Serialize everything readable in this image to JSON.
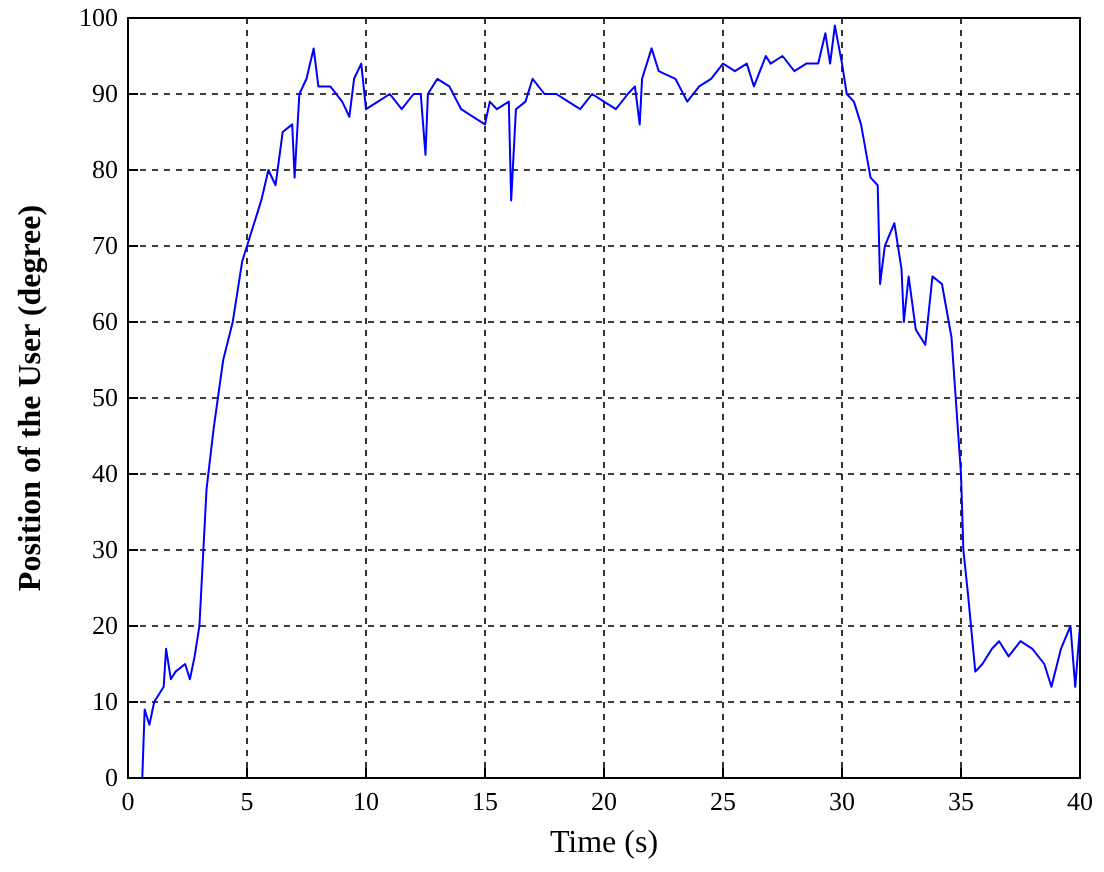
{
  "chart_data": {
    "type": "line",
    "xlabel": "Time (s)",
    "ylabel": "Position of the User (degree)",
    "xlim": [
      0,
      40
    ],
    "ylim": [
      0,
      100
    ],
    "xticks": [
      0,
      5,
      10,
      15,
      20,
      25,
      30,
      35,
      40
    ],
    "yticks": [
      0,
      10,
      20,
      30,
      40,
      50,
      60,
      70,
      80,
      90,
      100
    ],
    "grid": true,
    "series": [
      {
        "color": "#0000ff",
        "x": [
          0.6,
          0.7,
          0.9,
          1.1,
          1.5,
          1.6,
          1.8,
          2.0,
          2.4,
          2.6,
          2.8,
          3.0,
          3.3,
          3.6,
          4.0,
          4.4,
          4.6,
          4.8,
          5.0,
          5.3,
          5.6,
          5.9,
          6.2,
          6.5,
          6.9,
          7.0,
          7.2,
          7.5,
          7.8,
          8.0,
          8.5,
          9.0,
          9.3,
          9.5,
          9.8,
          10.0,
          10.5,
          11,
          11.5,
          12.0,
          12.3,
          12.5,
          12.6,
          13.0,
          13.5,
          14.0,
          14.5,
          15.0,
          15.2,
          15.5,
          16.0,
          16.1,
          16.3,
          16.7,
          17.0,
          17.5,
          18,
          18.5,
          19,
          19.5,
          20,
          20.5,
          21.0,
          21.3,
          21.5,
          21.6,
          22,
          22.3,
          23,
          23.5,
          24,
          24.5,
          25,
          25.5,
          26,
          26.3,
          26.8,
          27,
          27.5,
          28,
          28.5,
          29.0,
          29.3,
          29.5,
          29.7,
          30.0,
          30.2,
          30.5,
          30.8,
          31.2,
          31.5,
          31.6,
          31.8,
          32.2,
          32.5,
          32.6,
          32.8,
          33.1,
          33.5,
          33.8,
          34.2,
          34.6,
          35.0,
          35.1,
          35.3,
          35.6,
          35.9,
          36.3,
          36.6,
          37,
          37.5,
          38,
          38.5,
          38.8,
          39.2,
          39.6,
          39.8,
          40
        ],
        "values": [
          0,
          9,
          7,
          10,
          12,
          17,
          13,
          14,
          15,
          13,
          16,
          20,
          38,
          46,
          55,
          60,
          64,
          68,
          70,
          73,
          76,
          80,
          78,
          85,
          86,
          79,
          90,
          92,
          96,
          91,
          91,
          89,
          87,
          92,
          94,
          88,
          89,
          90,
          88,
          90,
          90,
          82,
          90,
          92,
          91,
          88,
          87,
          86,
          89,
          88,
          89,
          76,
          88,
          89,
          92,
          90,
          90,
          89,
          88,
          90,
          89,
          88,
          90,
          91,
          86,
          92,
          96,
          93,
          92,
          89,
          91,
          92,
          94,
          93,
          94,
          91,
          95,
          94,
          95,
          93,
          94,
          94,
          98,
          94,
          99,
          94,
          90,
          89,
          86,
          79,
          78,
          65,
          70,
          73,
          67,
          60,
          66,
          59,
          57,
          66,
          65,
          58,
          40,
          30,
          24,
          14,
          15,
          17,
          18,
          16,
          18,
          17,
          15,
          12,
          17,
          20,
          12,
          20
        ]
      }
    ]
  }
}
